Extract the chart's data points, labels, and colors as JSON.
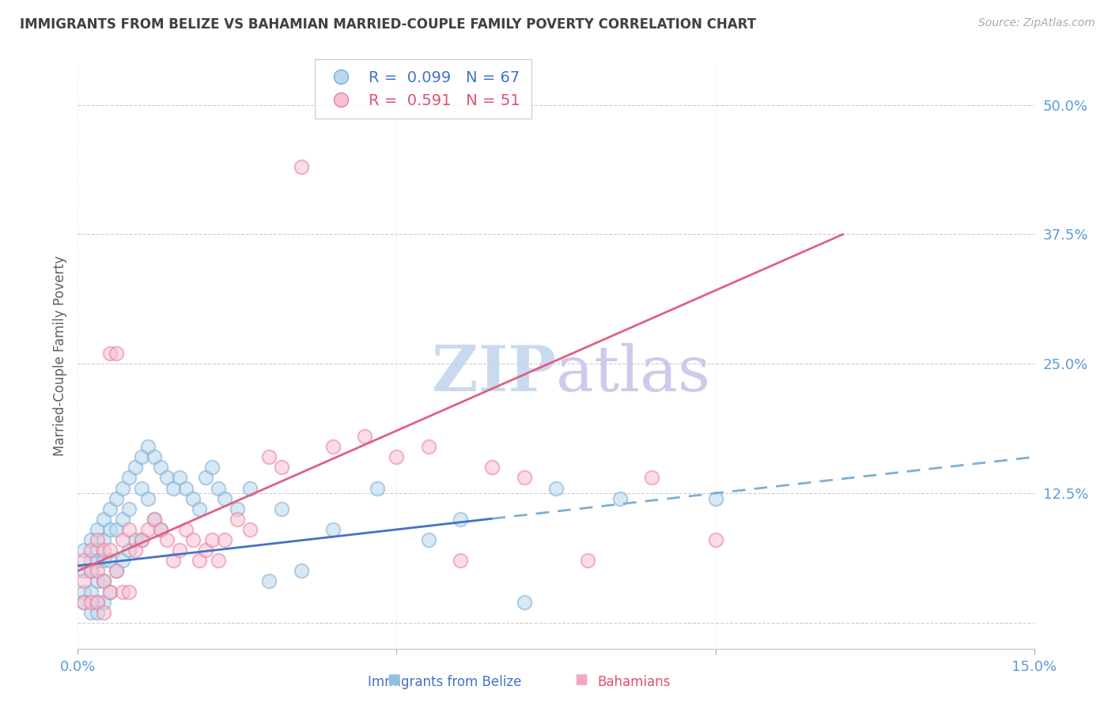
{
  "title": "IMMIGRANTS FROM BELIZE VS BAHAMIAN MARRIED-COUPLE FAMILY POVERTY CORRELATION CHART",
  "source": "Source: ZipAtlas.com",
  "ylabel": "Married-Couple Family Poverty",
  "xlabel_blue": "Immigrants from Belize",
  "xlabel_pink": "Bahamians",
  "xlim": [
    0,
    0.15
  ],
  "ylim": [
    -0.025,
    0.54
  ],
  "yticks": [
    0.0,
    0.125,
    0.25,
    0.375,
    0.5
  ],
  "ytick_labels": [
    "",
    "12.5%",
    "25.0%",
    "37.5%",
    "50.0%"
  ],
  "xticks": [
    0.0,
    0.05,
    0.1,
    0.15
  ],
  "xtick_labels": [
    "0.0%",
    "",
    "",
    "15.0%"
  ],
  "R_blue": 0.099,
  "N_blue": 67,
  "R_pink": 0.591,
  "N_pink": 51,
  "blue_color": "#92c0e0",
  "blue_edge_color": "#7aadd4",
  "pink_color": "#f4a8c0",
  "pink_edge_color": "#e8809c",
  "trend_blue_solid_color": "#4472c4",
  "trend_blue_dash_color": "#7ab0d8",
  "trend_pink_color": "#e06080",
  "legend_blue_color": "#4472c4",
  "legend_pink_color": "#e05070",
  "axis_label_color": "#5b9bd5",
  "title_color": "#404040",
  "ylabel_color": "#606060",
  "watermark": "ZIPAtlas",
  "watermark_color_zip": "#c8d8f0",
  "watermark_color_atlas": "#d0c8f0",
  "background_color": "#ffffff",
  "grid_color": "#cccccc",
  "blue_scatter_x": [
    0.001,
    0.001,
    0.001,
    0.001,
    0.002,
    0.002,
    0.002,
    0.002,
    0.002,
    0.003,
    0.003,
    0.003,
    0.003,
    0.003,
    0.003,
    0.004,
    0.004,
    0.004,
    0.004,
    0.004,
    0.005,
    0.005,
    0.005,
    0.005,
    0.006,
    0.006,
    0.006,
    0.007,
    0.007,
    0.007,
    0.008,
    0.008,
    0.008,
    0.009,
    0.009,
    0.01,
    0.01,
    0.01,
    0.011,
    0.011,
    0.012,
    0.012,
    0.013,
    0.013,
    0.014,
    0.015,
    0.016,
    0.017,
    0.018,
    0.019,
    0.02,
    0.021,
    0.022,
    0.023,
    0.025,
    0.027,
    0.03,
    0.032,
    0.035,
    0.04,
    0.047,
    0.055,
    0.06,
    0.07,
    0.075,
    0.085,
    0.1
  ],
  "blue_scatter_y": [
    0.07,
    0.05,
    0.03,
    0.02,
    0.08,
    0.06,
    0.05,
    0.03,
    0.01,
    0.09,
    0.07,
    0.06,
    0.04,
    0.02,
    0.01,
    0.1,
    0.08,
    0.06,
    0.04,
    0.02,
    0.11,
    0.09,
    0.06,
    0.03,
    0.12,
    0.09,
    0.05,
    0.13,
    0.1,
    0.06,
    0.14,
    0.11,
    0.07,
    0.15,
    0.08,
    0.16,
    0.13,
    0.08,
    0.17,
    0.12,
    0.16,
    0.1,
    0.15,
    0.09,
    0.14,
    0.13,
    0.14,
    0.13,
    0.12,
    0.11,
    0.14,
    0.15,
    0.13,
    0.12,
    0.11,
    0.13,
    0.04,
    0.11,
    0.05,
    0.09,
    0.13,
    0.08,
    0.1,
    0.02,
    0.13,
    0.12,
    0.12
  ],
  "pink_scatter_x": [
    0.001,
    0.001,
    0.001,
    0.002,
    0.002,
    0.002,
    0.003,
    0.003,
    0.003,
    0.004,
    0.004,
    0.004,
    0.005,
    0.005,
    0.005,
    0.006,
    0.006,
    0.007,
    0.007,
    0.008,
    0.008,
    0.009,
    0.01,
    0.011,
    0.012,
    0.013,
    0.014,
    0.015,
    0.016,
    0.017,
    0.018,
    0.019,
    0.02,
    0.021,
    0.022,
    0.023,
    0.025,
    0.027,
    0.03,
    0.032,
    0.035,
    0.04,
    0.045,
    0.05,
    0.055,
    0.06,
    0.065,
    0.07,
    0.08,
    0.09,
    0.1
  ],
  "pink_scatter_y": [
    0.06,
    0.04,
    0.02,
    0.07,
    0.05,
    0.02,
    0.08,
    0.05,
    0.02,
    0.07,
    0.04,
    0.01,
    0.26,
    0.07,
    0.03,
    0.26,
    0.05,
    0.08,
    0.03,
    0.09,
    0.03,
    0.07,
    0.08,
    0.09,
    0.1,
    0.09,
    0.08,
    0.06,
    0.07,
    0.09,
    0.08,
    0.06,
    0.07,
    0.08,
    0.06,
    0.08,
    0.1,
    0.09,
    0.16,
    0.15,
    0.44,
    0.17,
    0.18,
    0.16,
    0.17,
    0.06,
    0.15,
    0.14,
    0.06,
    0.14,
    0.08
  ],
  "blue_trend_x": [
    0.0,
    0.15
  ],
  "blue_trend_y_intercept": 0.055,
  "blue_trend_slope": 0.7,
  "pink_trend_x0": 0.0,
  "pink_trend_x1": 0.12,
  "pink_trend_y0": 0.05,
  "pink_trend_y1": 0.375
}
